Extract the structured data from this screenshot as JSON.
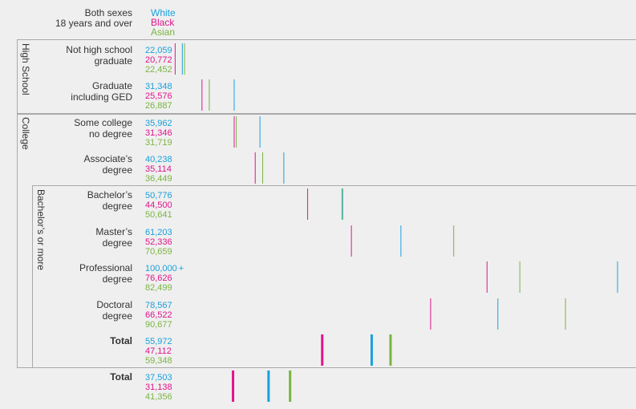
{
  "header": {
    "label_line1": "Both sexes",
    "label_line2": "18 years and over"
  },
  "legend": {
    "white": "White",
    "black": "Black",
    "asian": "Asian"
  },
  "colors": {
    "white": "#1aa0dc",
    "black": "#e0148c",
    "asian": "#7ab441"
  },
  "groups": {
    "high_school": "High School",
    "college": "College",
    "bachelors": "Bachelor’s or more"
  },
  "chart_data": {
    "type": "dot-strip",
    "title": "",
    "series": [
      "White",
      "Black",
      "Asian"
    ],
    "xlim": [
      20000,
      100000
    ],
    "rows": [
      {
        "line1": "Not high school",
        "line2": "graduate",
        "white": "22,059",
        "black": "20,772",
        "asian": "22,452",
        "values": [
          22059,
          20772,
          22452
        ]
      },
      {
        "line1": "Graduate",
        "line2": "including GED",
        "white": "31,348",
        "black": "25,576",
        "asian": "26,887",
        "values": [
          31348,
          25576,
          26887
        ]
      },
      {
        "line1": "Some college",
        "line2": "no degree",
        "white": "35,962",
        "black": "31,346",
        "asian": "31,719",
        "values": [
          35962,
          31346,
          31719
        ]
      },
      {
        "line1": "Associate’s",
        "line2": "degree",
        "white": "40,238",
        "black": "35,114",
        "asian": "36,449",
        "values": [
          40238,
          35114,
          36449
        ]
      },
      {
        "line1": "Bachelor’s",
        "line2": "degree",
        "white": "50,776",
        "black": "44,500",
        "asian": "50,641",
        "values": [
          50776,
          44500,
          50641
        ]
      },
      {
        "line1": "Master’s",
        "line2": "degree",
        "white": "61,203",
        "black": "52,336",
        "asian": "70,659",
        "values": [
          61203,
          52336,
          70659
        ]
      },
      {
        "line1": "Professional",
        "line2": "degree",
        "white": "100,000",
        "white_suffix": "+",
        "black": "76,626",
        "asian": "82,499",
        "values": [
          100000,
          76626,
          82499
        ]
      },
      {
        "line1": "Doctoral",
        "line2": "degree",
        "white": "78,567",
        "black": "66,522",
        "asian": "90,677",
        "values": [
          78567,
          66522,
          90677
        ]
      },
      {
        "line1": "Total",
        "line2": "",
        "bold": true,
        "white": "55,972",
        "black": "47,112",
        "asian": "59,348",
        "values": [
          55972,
          47112,
          59348
        ]
      },
      {
        "line1": "Total",
        "line2": "",
        "bold": true,
        "white": "37,503",
        "black": "31,138",
        "asian": "41,356",
        "values": [
          37503,
          31138,
          41356
        ]
      }
    ]
  }
}
